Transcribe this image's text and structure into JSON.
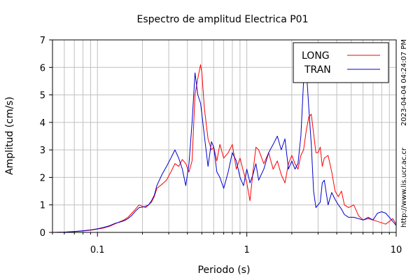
{
  "chart_data": {
    "type": "line",
    "title": "Espectro de amplitud Electrica P01",
    "xlabel": "Periodo (s)",
    "ylabel": "Amplitud (cm/s)",
    "x_scale": "log",
    "xlim": [
      0.05,
      10
    ],
    "ylim": [
      0,
      7
    ],
    "x_tick_labels": [
      "0.1",
      "1",
      "10"
    ],
    "x_ticks": [
      0.1,
      1,
      10
    ],
    "y_ticks": [
      0,
      1,
      2,
      3,
      4,
      5,
      6,
      7
    ],
    "y_tick_labels": [
      "0",
      "1",
      "2",
      "3",
      "4",
      "5",
      "6",
      "7"
    ],
    "grid": true,
    "legend_position": "top-right",
    "timestamp": "2023-04-04 04:24:07 PM",
    "source_url": "http://www.lis.ucr.ac.cr",
    "series": [
      {
        "name": "LONG",
        "color": "#ff0000",
        "x": [
          0.05,
          0.06,
          0.07,
          0.08,
          0.09,
          0.1,
          0.11,
          0.12,
          0.13,
          0.14,
          0.15,
          0.16,
          0.17,
          0.18,
          0.19,
          0.2,
          0.21,
          0.22,
          0.23,
          0.24,
          0.25,
          0.27,
          0.29,
          0.31,
          0.33,
          0.35,
          0.37,
          0.39,
          0.41,
          0.43,
          0.45,
          0.47,
          0.49,
          0.5,
          0.52,
          0.55,
          0.58,
          0.6,
          0.63,
          0.66,
          0.7,
          0.75,
          0.8,
          0.85,
          0.9,
          0.95,
          1.0,
          1.05,
          1.1,
          1.15,
          1.2,
          1.3,
          1.4,
          1.5,
          1.6,
          1.7,
          1.8,
          1.9,
          2.0,
          2.1,
          2.2,
          2.3,
          2.4,
          2.5,
          2.6,
          2.7,
          2.8,
          2.9,
          3.0,
          3.1,
          3.2,
          3.3,
          3.5,
          3.7,
          3.9,
          4.1,
          4.3,
          4.5,
          4.8,
          5.2,
          5.6,
          6.0,
          6.5,
          7.0,
          7.5,
          8.0,
          8.5,
          9.0,
          9.5,
          10.0
        ],
        "y": [
          0.0,
          0.01,
          0.03,
          0.05,
          0.08,
          0.12,
          0.16,
          0.22,
          0.3,
          0.38,
          0.45,
          0.55,
          0.7,
          0.85,
          1.0,
          0.95,
          0.9,
          1.0,
          1.1,
          1.3,
          1.6,
          1.75,
          1.9,
          2.2,
          2.5,
          2.4,
          2.65,
          2.5,
          2.2,
          2.6,
          5.0,
          5.6,
          6.1,
          5.8,
          4.5,
          3.4,
          3.0,
          3.1,
          2.6,
          3.2,
          2.7,
          2.9,
          3.2,
          2.3,
          2.7,
          2.2,
          1.8,
          1.15,
          2.2,
          3.1,
          3.0,
          2.5,
          2.9,
          2.3,
          2.6,
          2.1,
          1.8,
          2.5,
          2.8,
          2.5,
          2.3,
          2.8,
          3.0,
          3.7,
          4.2,
          4.3,
          3.6,
          2.9,
          2.9,
          3.1,
          2.4,
          2.7,
          2.8,
          2.2,
          1.5,
          1.3,
          1.5,
          1.0,
          0.9,
          1.0,
          0.6,
          0.45,
          0.5,
          0.45,
          0.4,
          0.35,
          0.3,
          0.4,
          0.5,
          0.3
        ]
      },
      {
        "name": "TRAN",
        "color": "#0000cc",
        "x": [
          0.05,
          0.06,
          0.07,
          0.08,
          0.09,
          0.1,
          0.11,
          0.12,
          0.13,
          0.14,
          0.15,
          0.16,
          0.17,
          0.18,
          0.19,
          0.2,
          0.21,
          0.22,
          0.23,
          0.24,
          0.25,
          0.27,
          0.29,
          0.31,
          0.33,
          0.35,
          0.37,
          0.39,
          0.41,
          0.43,
          0.45,
          0.47,
          0.49,
          0.5,
          0.52,
          0.55,
          0.58,
          0.6,
          0.63,
          0.66,
          0.7,
          0.75,
          0.8,
          0.85,
          0.9,
          0.95,
          1.0,
          1.05,
          1.1,
          1.15,
          1.2,
          1.3,
          1.4,
          1.5,
          1.6,
          1.7,
          1.8,
          1.9,
          2.0,
          2.1,
          2.2,
          2.3,
          2.4,
          2.5,
          2.6,
          2.7,
          2.8,
          2.9,
          3.0,
          3.1,
          3.2,
          3.3,
          3.5,
          3.7,
          3.9,
          4.1,
          4.3,
          4.5,
          4.8,
          5.2,
          5.6,
          6.0,
          6.5,
          7.0,
          7.5,
          8.0,
          8.5,
          9.0,
          9.5,
          10.0
        ],
        "y": [
          0.0,
          0.01,
          0.03,
          0.06,
          0.09,
          0.13,
          0.18,
          0.24,
          0.32,
          0.37,
          0.42,
          0.5,
          0.62,
          0.78,
          0.9,
          0.92,
          0.95,
          1.0,
          1.15,
          1.35,
          1.7,
          2.1,
          2.4,
          2.7,
          3.0,
          2.7,
          2.3,
          1.7,
          2.5,
          4.0,
          5.8,
          5.0,
          4.7,
          4.3,
          3.5,
          2.4,
          3.3,
          3.1,
          2.2,
          2.0,
          1.6,
          2.2,
          2.9,
          2.6,
          2.0,
          1.7,
          2.3,
          1.8,
          2.1,
          2.5,
          1.9,
          2.3,
          2.9,
          3.2,
          3.5,
          3.0,
          3.4,
          2.3,
          2.6,
          2.3,
          2.5,
          3.5,
          5.5,
          6.0,
          4.5,
          3.2,
          1.5,
          0.9,
          1.0,
          1.1,
          1.8,
          1.9,
          1.0,
          1.45,
          1.2,
          1.0,
          0.85,
          0.65,
          0.55,
          0.55,
          0.5,
          0.45,
          0.55,
          0.45,
          0.7,
          0.75,
          0.7,
          0.55,
          0.4,
          0.25
        ]
      }
    ]
  }
}
